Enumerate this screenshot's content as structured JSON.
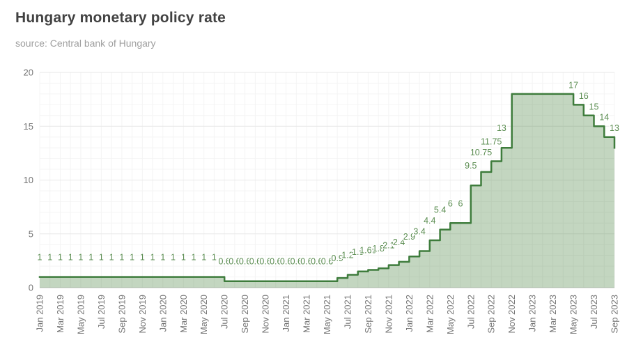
{
  "header": {
    "title": "Hungary monetary policy rate",
    "subtitle": "source: Central bank of Hungary"
  },
  "chart_data": {
    "type": "area",
    "subtype": "step-after",
    "title": "Hungary monetary policy rate",
    "source": "source: Central bank of Hungary",
    "xlabel": "",
    "ylabel": "",
    "ylim": [
      0,
      20
    ],
    "y_ticks": [
      0,
      5,
      10,
      15,
      20
    ],
    "grid": "on",
    "legend": "none",
    "categories": [
      "Jan 2019",
      "Feb 2019",
      "Mar 2019",
      "Apr 2019",
      "May 2019",
      "Jun 2019",
      "Jul 2019",
      "Aug 2019",
      "Sep 2019",
      "Oct 2019",
      "Nov 2019",
      "Dec 2019",
      "Jan 2020",
      "Feb 2020",
      "Mar 2020",
      "Apr 2020",
      "May 2020",
      "Jun 2020",
      "Jul 2020",
      "Aug 2020",
      "Sep 2020",
      "Oct 2020",
      "Nov 2020",
      "Dec 2020",
      "Jan 2021",
      "Feb 2021",
      "Mar 2021",
      "Apr 2021",
      "May 2021",
      "Jun 2021",
      "Jul 2021",
      "Aug 2021",
      "Sep 2021",
      "Oct 2021",
      "Nov 2021",
      "Dec 2021",
      "Jan 2022",
      "Feb 2022",
      "Mar 2022",
      "Apr 2022",
      "May 2022",
      "Jun 2022",
      "Jul 2022",
      "Aug 2022",
      "Sep 2022",
      "Oct 2022",
      "Nov 2022",
      "Dec 2022",
      "Jan 2023",
      "Feb 2023",
      "Mar 2023",
      "Apr 2023",
      "May 2023",
      "Jun 2023",
      "Jul 2023",
      "Aug 2023",
      "Sep 2023"
    ],
    "values": [
      1,
      1,
      1,
      1,
      1,
      1,
      1,
      1,
      1,
      1,
      1,
      1,
      1,
      1,
      1,
      1,
      1,
      1,
      0.6,
      0.6,
      0.6,
      0.6,
      0.6,
      0.6,
      0.6,
      0.6,
      0.6,
      0.6,
      0.6,
      0.9,
      1.2,
      1.5,
      1.65,
      1.8,
      2.1,
      2.4,
      2.9,
      3.4,
      4.4,
      5.4,
      6,
      6,
      9.5,
      10.75,
      11.75,
      13,
      18,
      18,
      18,
      18,
      18,
      18,
      17,
      16,
      15,
      14,
      13
    ],
    "point_labels": [
      "1",
      "1",
      "1",
      "1",
      "1",
      "1",
      "1",
      "1",
      "1",
      "1",
      "1",
      "1",
      "1",
      "1",
      "1",
      "1",
      "1",
      "1",
      "0.6",
      "0.6",
      "0.6",
      "0.6",
      "0.6",
      "0.6",
      "0.6",
      "0.6",
      "0.6",
      "0.6",
      "0.6",
      "0.9",
      "1.2",
      "1.5",
      "1.65",
      "1.8",
      "2.1",
      "2.4",
      "2.9",
      "3.4",
      "4.4",
      "5.4",
      "6",
      "6",
      "9.5",
      "10.75",
      "11.75",
      "13",
      "",
      "",
      "",
      "",
      "",
      "",
      "17",
      "16",
      "15",
      "14",
      "13"
    ],
    "x_tick_labels": [
      "Jan 2019",
      "Mar 2019",
      "May 2019",
      "Jul 2019",
      "Sep 2019",
      "Nov 2019",
      "Jan 2020",
      "Mar 2020",
      "May 2020",
      "Jul 2020",
      "Sep 2020",
      "Nov 2020",
      "Jan 2021",
      "Mar 2021",
      "May 2021",
      "Jul 2021",
      "Sep 2021",
      "Nov 2021",
      "Jan 2022",
      "Mar 2022",
      "May 2022",
      "Jul 2022",
      "Sep 2022",
      "Nov 2022",
      "Jan 2023",
      "Mar 2023",
      "May 2023",
      "Jul 2023",
      "Sep 2023"
    ],
    "colors": {
      "line": "#3e7c3c",
      "fill": "rgba(69,128,60,0.32)",
      "point_label_text": "#5a8c50",
      "axis_text": "#757575",
      "grid_minor": "#f4f4f4",
      "grid_major": "#e7e7e7",
      "baseline": "#c9c9c9",
      "title_text": "#424242",
      "subtitle_text": "#9e9e9e"
    }
  }
}
